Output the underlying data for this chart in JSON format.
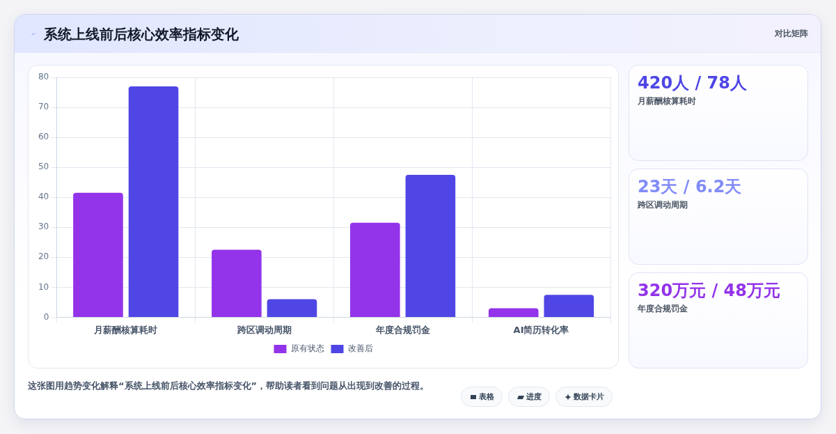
{
  "chart_data": [
    {
      "type": "bar",
      "title": "系统上线前后核心效率指标变化",
      "categories": [
        "月薪酬核算耗时",
        "跨区调动周期",
        "年度合规罚金",
        "AI简历转化率"
      ],
      "series": [
        {
          "name": "原有状态",
          "color": "#9333ea",
          "values": [
            41.5,
            22.5,
            31.5,
            3
          ]
        },
        {
          "name": "改善后",
          "color": "#4f46e5",
          "values": [
            77,
            6,
            47.5,
            7.5
          ]
        }
      ],
      "ylim": [
        0,
        80
      ],
      "yticks": [
        0,
        10,
        20,
        30,
        40,
        50,
        60,
        70,
        80
      ],
      "grid": true,
      "legend": "bottom",
      "annotations": [
        "对比矩阵",
        "这张图用趋势变化解释“系统上线前后核心效率指标变化”，帮助读者看到问题从出现到改善的过程。",
        "表格",
        "进度",
        "数据卡片"
      ]
    },
    {
      "type": "other",
      "categories": [
        "月薪酬核算耗时",
        "跨区调动周期",
        "年度合规罚金"
      ],
      "value_labels": [
        "420人 / 78人",
        "23天 / 6.2天",
        "320万元 / 48万元"
      ]
    }
  ]
}
